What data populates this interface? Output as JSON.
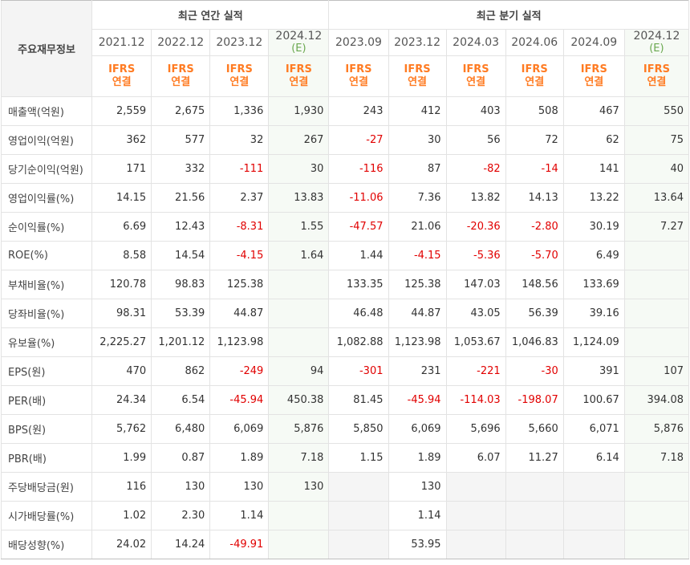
{
  "header": {
    "corner_label": "주요재무정보",
    "annual_title": "최근 연간 실적",
    "quarter_title": "최근 분기 실적",
    "ifrs_line1": "IFRS",
    "ifrs_line2": "연결",
    "estimate_mark": "(E)"
  },
  "periods": [
    {
      "label": "2021.12",
      "estimate": false
    },
    {
      "label": "2022.12",
      "estimate": false
    },
    {
      "label": "2023.12",
      "estimate": false
    },
    {
      "label": "2024.12",
      "estimate": true
    },
    {
      "label": "2023.09",
      "estimate": false
    },
    {
      "label": "2023.12",
      "estimate": false
    },
    {
      "label": "2024.03",
      "estimate": false
    },
    {
      "label": "2024.06",
      "estimate": false
    },
    {
      "label": "2024.09",
      "estimate": false
    },
    {
      "label": "2024.12",
      "estimate": true
    }
  ],
  "rows": [
    {
      "label": "매출액(억원)",
      "group_start": true,
      "values": [
        "2,559",
        "2,675",
        "1,336",
        "1,930",
        "243",
        "412",
        "403",
        "508",
        "467",
        "550"
      ]
    },
    {
      "label": "영업이익(억원)",
      "group_start": false,
      "values": [
        "362",
        "577",
        "32",
        "267",
        "-27",
        "30",
        "56",
        "72",
        "62",
        "75"
      ]
    },
    {
      "label": "당기순이익(억원)",
      "group_start": false,
      "values": [
        "171",
        "332",
        "-111",
        "30",
        "-116",
        "87",
        "-82",
        "-14",
        "141",
        "40"
      ]
    },
    {
      "label": "영업이익률(%)",
      "group_start": true,
      "values": [
        "14.15",
        "21.56",
        "2.37",
        "13.83",
        "-11.06",
        "7.36",
        "13.82",
        "14.13",
        "13.22",
        "13.64"
      ]
    },
    {
      "label": "순이익률(%)",
      "group_start": false,
      "values": [
        "6.69",
        "12.43",
        "-8.31",
        "1.55",
        "-47.57",
        "21.06",
        "-20.36",
        "-2.80",
        "30.19",
        "7.27"
      ]
    },
    {
      "label": "ROE(%)",
      "group_start": false,
      "values": [
        "8.58",
        "14.54",
        "-4.15",
        "1.64",
        "1.44",
        "-4.15",
        "-5.36",
        "-5.70",
        "6.49",
        ""
      ]
    },
    {
      "label": "부채비율(%)",
      "group_start": true,
      "values": [
        "120.78",
        "98.83",
        "125.38",
        "",
        "133.35",
        "125.38",
        "147.03",
        "148.56",
        "133.69",
        ""
      ]
    },
    {
      "label": "당좌비율(%)",
      "group_start": false,
      "values": [
        "98.31",
        "53.39",
        "44.87",
        "",
        "46.48",
        "44.87",
        "43.05",
        "56.39",
        "39.16",
        ""
      ]
    },
    {
      "label": "유보율(%)",
      "group_start": false,
      "values": [
        "2,225.27",
        "1,201.12",
        "1,123.98",
        "",
        "1,082.88",
        "1,123.98",
        "1,053.67",
        "1,046.83",
        "1,124.09",
        ""
      ]
    },
    {
      "label": "EPS(원)",
      "group_start": true,
      "values": [
        "470",
        "862",
        "-249",
        "94",
        "-301",
        "231",
        "-221",
        "-30",
        "391",
        "107"
      ]
    },
    {
      "label": "PER(배)",
      "group_start": false,
      "values": [
        "24.34",
        "6.54",
        "-45.94",
        "450.38",
        "81.45",
        "-45.94",
        "-114.03",
        "-198.07",
        "100.67",
        "394.08"
      ]
    },
    {
      "label": "BPS(원)",
      "group_start": false,
      "values": [
        "5,762",
        "6,480",
        "6,069",
        "5,876",
        "5,850",
        "6,069",
        "5,696",
        "5,660",
        "6,071",
        "5,876"
      ]
    },
    {
      "label": "PBR(배)",
      "group_start": false,
      "values": [
        "1.99",
        "0.87",
        "1.89",
        "7.18",
        "1.15",
        "1.89",
        "6.07",
        "11.27",
        "6.14",
        "7.18"
      ]
    },
    {
      "label": "주당배당금(원)",
      "group_start": true,
      "values": [
        "116",
        "130",
        "130",
        "130",
        "",
        "130",
        "",
        "",
        "",
        ""
      ]
    },
    {
      "label": "시가배당률(%)",
      "group_start": false,
      "values": [
        "1.02",
        "2.30",
        "1.14",
        "",
        "",
        "1.14",
        "",
        "",
        "",
        ""
      ]
    },
    {
      "label": "배당성향(%)",
      "group_start": false,
      "values": [
        "24.02",
        "14.24",
        "-49.91",
        "",
        "",
        "53.95",
        "",
        "",
        "",
        ""
      ]
    }
  ],
  "colors": {
    "negative": "#e10000",
    "ifrs": "#ff7b22",
    "estimate_bg": "#f6faf5",
    "empty_quarter_bg": "#f5f5f5"
  }
}
